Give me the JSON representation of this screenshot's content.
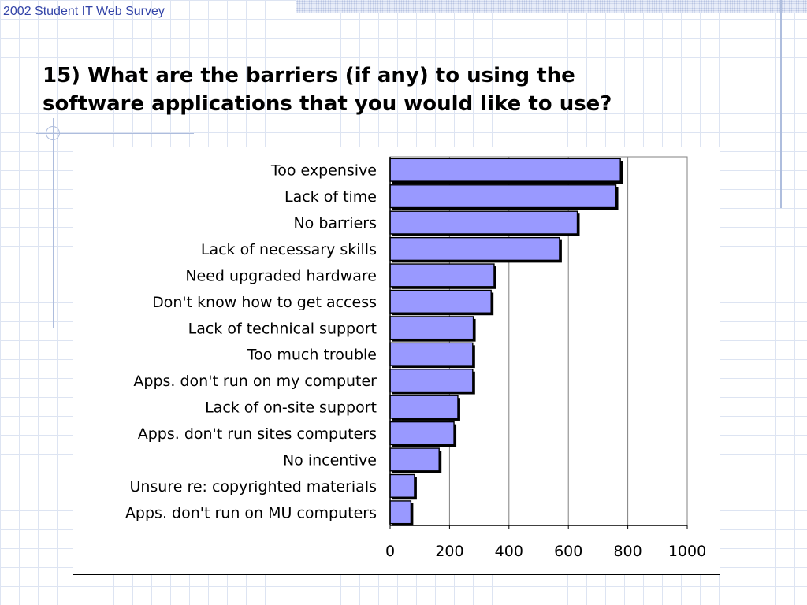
{
  "header": {
    "survey_title": "2002 Student IT Web Survey"
  },
  "slide": {
    "question_line1": "15) What are the barriers (if any) to using the",
    "question_line2": "software applications that you would like to use?"
  },
  "colors": {
    "bar_fill": "#9999ff",
    "title_blue": "#3344a8"
  },
  "chart_data": {
    "type": "bar",
    "orientation": "horizontal",
    "categories": [
      "Too expensive",
      "Lack of time",
      "No barriers",
      "Lack of necessary skills",
      "Need upgraded hardware",
      "Don't know how to get access",
      "Lack of technical support",
      "Too much trouble",
      "Apps. don't run on my computer",
      "Lack of on-site support",
      "Apps. don't run sites computers",
      "No incentive",
      "Unsure re: copyrighted materials",
      "Apps. don't run on MU computers"
    ],
    "values": [
      775,
      760,
      630,
      570,
      350,
      340,
      280,
      278,
      278,
      228,
      215,
      165,
      82,
      70
    ],
    "xlim": [
      0,
      1000
    ],
    "xticks": [
      "0",
      "200",
      "400",
      "600",
      "800",
      "1000"
    ],
    "gridlines": "vertical",
    "legend": "none"
  }
}
